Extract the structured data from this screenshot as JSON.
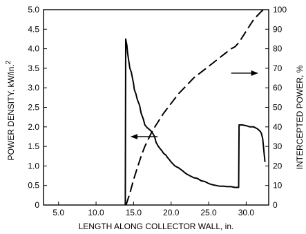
{
  "chart_data": {
    "type": "line",
    "xlabel": "LENGTH ALONG COLLECTOR WALL, in.",
    "ylabel_left": "POWER DENSITY, kW/in.",
    "ylabel_left_superscript": "2",
    "ylabel_right": "INTERCEPTED POWER, %",
    "xlim": [
      3.0,
      33.0
    ],
    "ylim_left": [
      0,
      5.0
    ],
    "ylim_right": [
      0,
      100
    ],
    "x_ticks": [
      5.0,
      10.0,
      15.0,
      20.0,
      25.0,
      30.0
    ],
    "x_tick_labels": [
      "5.0",
      "10.0",
      "15.0",
      "20.0",
      "25.0",
      "30.0"
    ],
    "y_left_ticks": [
      0,
      0.5,
      1.0,
      1.5,
      2.0,
      2.5,
      3.0,
      3.5,
      4.0,
      4.5,
      5.0
    ],
    "y_left_tick_labels": [
      "0",
      "0.5",
      "1.0",
      "1.5",
      "2.0",
      "2.5",
      "3.0",
      "3.5",
      "4.0",
      "4.5",
      "5.0"
    ],
    "y_right_ticks": [
      0,
      10,
      20,
      30,
      40,
      50,
      60,
      70,
      80,
      90,
      100
    ],
    "y_right_tick_labels": [
      "0",
      "10",
      "20",
      "30",
      "40",
      "50",
      "60",
      "70",
      "80",
      "90",
      "100"
    ],
    "grid": false,
    "series": [
      {
        "axis": "left",
        "style": "solid",
        "x": [
          13.9,
          13.95,
          14.0,
          14.1,
          14.2,
          14.35,
          14.5,
          14.7,
          14.8,
          15.0,
          15.1,
          15.3,
          15.5,
          15.8,
          16.0,
          16.3,
          16.5,
          16.8,
          17.0,
          17.3,
          17.5,
          17.8,
          18.0,
          18.3,
          18.5,
          18.8,
          19.0,
          19.3,
          19.5,
          19.8,
          20.0,
          20.5,
          21.0,
          21.5,
          22.0,
          22.5,
          23.0,
          23.5,
          24.0,
          24.5,
          25.0,
          25.5,
          26.0,
          26.5,
          27.0,
          27.5,
          28.0,
          28.5,
          29.0,
          29.05,
          29.5,
          30.0,
          30.5,
          31.0,
          31.5,
          31.8,
          32.0,
          32.2,
          32.4,
          32.5
        ],
        "y": [
          0,
          4.25,
          4.2,
          4.1,
          3.9,
          3.7,
          3.5,
          3.4,
          3.3,
          3.1,
          2.95,
          2.85,
          2.7,
          2.55,
          2.35,
          2.2,
          2.05,
          1.98,
          1.95,
          1.9,
          1.85,
          1.75,
          1.6,
          1.5,
          1.45,
          1.38,
          1.32,
          1.28,
          1.22,
          1.15,
          1.1,
          1.0,
          0.95,
          0.88,
          0.8,
          0.75,
          0.7,
          0.68,
          0.62,
          0.6,
          0.55,
          0.52,
          0.5,
          0.48,
          0.48,
          0.47,
          0.47,
          0.45,
          0.45,
          2.05,
          2.05,
          2.03,
          2.0,
          2.0,
          1.95,
          1.9,
          1.85,
          1.7,
          1.3,
          1.1
        ]
      },
      {
        "axis": "right",
        "style": "dashed",
        "x": [
          14.0,
          14.5,
          15.0,
          15.5,
          16.0,
          16.5,
          17.0,
          17.5,
          18.0,
          19.0,
          20.0,
          21.0,
          22.0,
          23.0,
          24.0,
          25.0,
          26.0,
          27.0,
          28.0,
          28.5,
          29.0,
          29.5,
          30.0,
          30.5,
          31.0,
          31.5,
          32.0,
          32.3
        ],
        "y": [
          0,
          6,
          13,
          19,
          25,
          30,
          34,
          38,
          41,
          47,
          52,
          57,
          61,
          65,
          68,
          71,
          74,
          77,
          80,
          81,
          83,
          86,
          89,
          92,
          95,
          97,
          99,
          100
        ]
      }
    ],
    "annotations": [
      {
        "type": "arrow",
        "direction": "left",
        "points_to_axis": "left",
        "at": [
          14.7,
          1.75
        ]
      },
      {
        "type": "arrow",
        "direction": "right",
        "points_to_axis": "right",
        "at": [
          28.0,
          67.5
        ]
      }
    ]
  }
}
